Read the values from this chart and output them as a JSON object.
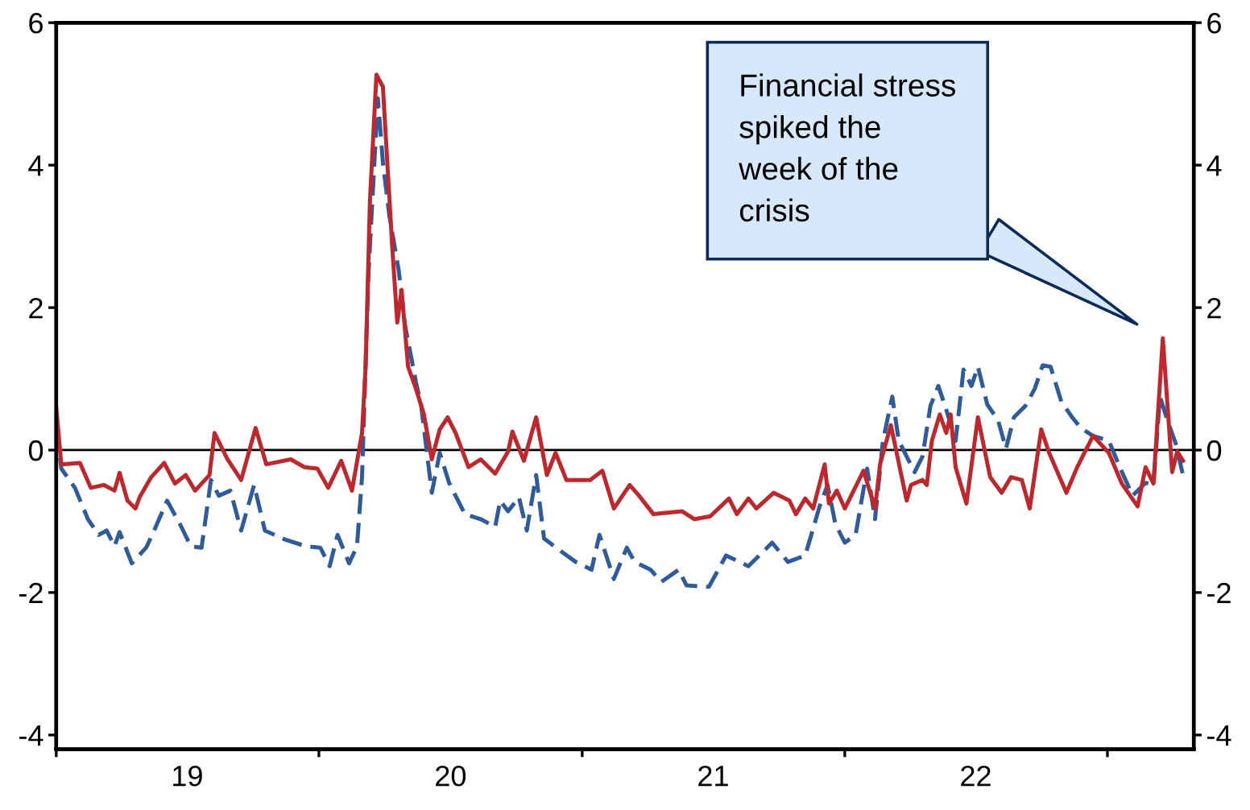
{
  "chart_data": {
    "type": "line",
    "xlim": [
      "2019-01-01",
      "2023-05-01"
    ],
    "xticks": [
      {
        "value": "2019-01-01",
        "label": null
      },
      {
        "value": "2019-07-02",
        "label": "19"
      },
      {
        "value": "2020-01-01",
        "label": null
      },
      {
        "value": "2020-07-02",
        "label": "20"
      },
      {
        "value": "2021-01-01",
        "label": null
      },
      {
        "value": "2021-07-02",
        "label": "21"
      },
      {
        "value": "2022-01-01",
        "label": null
      },
      {
        "value": "2022-07-02",
        "label": "22"
      },
      {
        "value": "2023-01-01",
        "label": null
      }
    ],
    "ylim": [
      -4.2,
      6.0
    ],
    "yticks": [
      -4,
      -2,
      0,
      2,
      4,
      6
    ],
    "y2lim": [
      -4.2,
      6.0
    ],
    "y2ticks": [
      -4,
      -2,
      0,
      2,
      4,
      6
    ],
    "grid": false,
    "ref_lines": [
      {
        "axis": "y",
        "value": 0,
        "color": "#000000"
      }
    ],
    "annotations": [
      "Financial stress\nspiked the\nweek of the\ncrisis"
    ],
    "series": [
      {
        "color": "#c0272d",
        "line_style": "solid",
        "x": [
          "2019-01-01",
          "2019-01-08",
          "2019-02-03",
          "2019-02-18",
          "2019-03-08",
          "2019-03-23",
          "2019-03-30",
          "2019-04-10",
          "2019-04-21",
          "2019-04-27",
          "2019-05-13",
          "2019-05-31",
          "2019-06-15",
          "2019-06-30",
          "2019-07-13",
          "2019-08-02",
          "2019-08-09",
          "2019-08-27",
          "2019-09-15",
          "2019-10-05",
          "2019-10-20",
          "2019-11-23",
          "2019-12-12",
          "2019-12-30",
          "2020-01-14",
          "2020-02-01",
          "2020-02-16",
          "2020-03-01",
          "2020-03-06",
          "2020-03-12",
          "2020-03-21",
          "2020-03-30",
          "2020-04-12",
          "2020-04-19",
          "2020-04-25",
          "2020-05-04",
          "2020-05-15",
          "2020-05-26",
          "2020-06-06",
          "2020-06-17",
          "2020-06-28",
          "2020-07-09",
          "2020-07-27",
          "2020-08-13",
          "2020-09-02",
          "2020-09-20",
          "2020-09-26",
          "2020-10-12",
          "2020-10-29",
          "2020-11-13",
          "2020-11-25",
          "2020-12-10",
          "2021-01-12",
          "2021-01-29",
          "2021-02-14",
          "2021-03-08",
          "2021-03-21",
          "2021-04-10",
          "2021-05-20",
          "2021-06-06",
          "2021-06-28",
          "2021-07-24",
          "2021-08-04",
          "2021-08-20",
          "2021-08-31",
          "2021-09-24",
          "2021-10-16",
          "2021-10-25",
          "2021-11-07",
          "2021-11-18",
          "2021-12-04",
          "2021-12-10",
          "2021-12-21",
          "2022-01-01",
          "2022-01-27",
          "2022-02-12",
          "2022-02-19",
          "2022-03-06",
          "2022-03-28",
          "2022-04-03",
          "2022-04-19",
          "2022-04-25",
          "2022-05-02",
          "2022-05-13",
          "2022-05-22",
          "2022-05-28",
          "2022-06-04",
          "2022-06-19",
          "2022-07-05",
          "2022-07-22",
          "2022-08-07",
          "2022-08-20",
          "2022-09-04",
          "2022-09-15",
          "2022-10-01",
          "2022-10-12",
          "2022-11-05",
          "2022-11-20",
          "2022-12-12",
          "2023-01-03",
          "2023-01-21",
          "2023-02-12",
          "2023-02-23",
          "2023-03-06",
          "2023-03-19",
          "2023-04-01",
          "2023-04-08",
          "2023-04-16"
        ],
        "values": [
          0.59,
          -0.2,
          -0.18,
          -0.53,
          -0.49,
          -0.57,
          -0.32,
          -0.71,
          -0.82,
          -0.66,
          -0.38,
          -0.18,
          -0.47,
          -0.35,
          -0.57,
          -0.35,
          0.24,
          -0.13,
          -0.42,
          0.31,
          -0.2,
          -0.13,
          -0.24,
          -0.26,
          -0.53,
          -0.15,
          -0.57,
          0.24,
          1.17,
          3.5,
          5.27,
          5.1,
          2.85,
          1.79,
          2.25,
          1.17,
          0.86,
          0.5,
          -0.13,
          0.29,
          0.46,
          0.24,
          -0.24,
          -0.13,
          -0.33,
          -0.02,
          0.26,
          -0.15,
          0.46,
          -0.35,
          -0.04,
          -0.42,
          -0.42,
          -0.29,
          -0.82,
          -0.49,
          -0.64,
          -0.9,
          -0.86,
          -0.97,
          -0.93,
          -0.68,
          -0.9,
          -0.68,
          -0.82,
          -0.6,
          -0.71,
          -0.9,
          -0.68,
          -0.82,
          -0.2,
          -0.75,
          -0.57,
          -0.82,
          -0.29,
          -0.82,
          -0.2,
          0.35,
          -0.71,
          -0.49,
          -0.42,
          -0.49,
          0.13,
          0.5,
          0.24,
          0.5,
          -0.24,
          -0.75,
          0.46,
          -0.38,
          -0.6,
          -0.38,
          -0.42,
          -0.82,
          0.29,
          -0.04,
          -0.6,
          -0.24,
          0.2,
          -0.04,
          -0.47,
          -0.79,
          -0.24,
          -0.47,
          1.57,
          -0.31,
          -0.02,
          -0.15
        ]
      },
      {
        "color": "#2f5b9a",
        "line_style": "dashed",
        "x": [
          "2019-01-01",
          "2019-01-08",
          "2019-01-27",
          "2019-02-14",
          "2019-03-01",
          "2019-03-12",
          "2019-03-23",
          "2019-03-30",
          "2019-04-16",
          "2019-05-06",
          "2019-05-17",
          "2019-06-04",
          "2019-06-22",
          "2019-07-07",
          "2019-07-22",
          "2019-08-04",
          "2019-08-15",
          "2019-08-31",
          "2019-09-15",
          "2019-10-03",
          "2019-10-18",
          "2019-11-16",
          "2019-12-14",
          "2020-01-03",
          "2020-01-16",
          "2020-01-27",
          "2020-02-12",
          "2020-02-23",
          "2020-03-01",
          "2020-03-10",
          "2020-03-17",
          "2020-03-23",
          "2020-03-30",
          "2020-04-08",
          "2020-04-21",
          "2020-04-30",
          "2020-05-15",
          "2020-05-22",
          "2020-06-06",
          "2020-06-17",
          "2020-06-30",
          "2020-07-22",
          "2020-08-13",
          "2020-09-02",
          "2020-09-09",
          "2020-09-20",
          "2020-10-05",
          "2020-10-16",
          "2020-10-29",
          "2020-11-09",
          "2020-12-01",
          "2020-12-23",
          "2021-01-14",
          "2021-01-25",
          "2021-02-14",
          "2021-03-04",
          "2021-03-15",
          "2021-04-06",
          "2021-04-21",
          "2021-05-15",
          "2021-05-26",
          "2021-06-26",
          "2021-07-20",
          "2021-08-20",
          "2021-09-22",
          "2021-10-14",
          "2021-11-07",
          "2021-11-27",
          "2021-12-08",
          "2021-12-19",
          "2022-01-01",
          "2022-01-16",
          "2022-02-01",
          "2022-02-12",
          "2022-02-23",
          "2022-03-08",
          "2022-03-17",
          "2022-04-08",
          "2022-04-19",
          "2022-04-30",
          "2022-05-11",
          "2022-05-22",
          "2022-06-04",
          "2022-06-15",
          "2022-06-26",
          "2022-07-05",
          "2022-07-18",
          "2022-08-02",
          "2022-08-13",
          "2022-08-24",
          "2022-09-09",
          "2022-09-22",
          "2022-10-03",
          "2022-10-14",
          "2022-10-29",
          "2022-11-13",
          "2022-11-25",
          "2022-12-12",
          "2023-01-03",
          "2023-01-19",
          "2023-02-05",
          "2023-02-23",
          "2023-03-06",
          "2023-03-15",
          "2023-03-26",
          "2023-04-06",
          "2023-04-16"
        ],
        "values": [
          0.29,
          -0.26,
          -0.53,
          -0.97,
          -1.19,
          -1.13,
          -1.35,
          -1.15,
          -1.59,
          -1.37,
          -1.13,
          -0.71,
          -1.04,
          -1.35,
          -1.37,
          -0.42,
          -0.64,
          -0.57,
          -1.13,
          -0.49,
          -1.13,
          -1.26,
          -1.35,
          -1.37,
          -1.63,
          -1.19,
          -1.59,
          -1.35,
          -0.38,
          2.49,
          3.82,
          4.94,
          4.04,
          3.29,
          2.52,
          1.74,
          0.95,
          0.64,
          -0.6,
          -0.04,
          -0.46,
          -0.9,
          -0.97,
          -1.08,
          -0.71,
          -0.86,
          -0.66,
          -1.13,
          -0.35,
          -1.24,
          -1.41,
          -1.57,
          -1.68,
          -1.19,
          -1.81,
          -1.37,
          -1.57,
          -1.68,
          -1.85,
          -1.68,
          -1.9,
          -1.92,
          -1.48,
          -1.63,
          -1.3,
          -1.57,
          -1.48,
          -0.79,
          -0.49,
          -1.04,
          -1.3,
          -1.19,
          -0.26,
          -0.97,
          0.13,
          0.75,
          0.13,
          -0.31,
          -0.09,
          0.62,
          0.9,
          0.57,
          0.13,
          1.13,
          0.9,
          1.17,
          0.64,
          0.42,
          0.02,
          0.46,
          0.62,
          0.86,
          1.19,
          1.17,
          0.68,
          0.46,
          0.31,
          0.2,
          0.13,
          -0.26,
          -0.64,
          -0.46,
          -0.49,
          0.75,
          0.4,
          0.09,
          -0.35
        ]
      }
    ]
  }
}
